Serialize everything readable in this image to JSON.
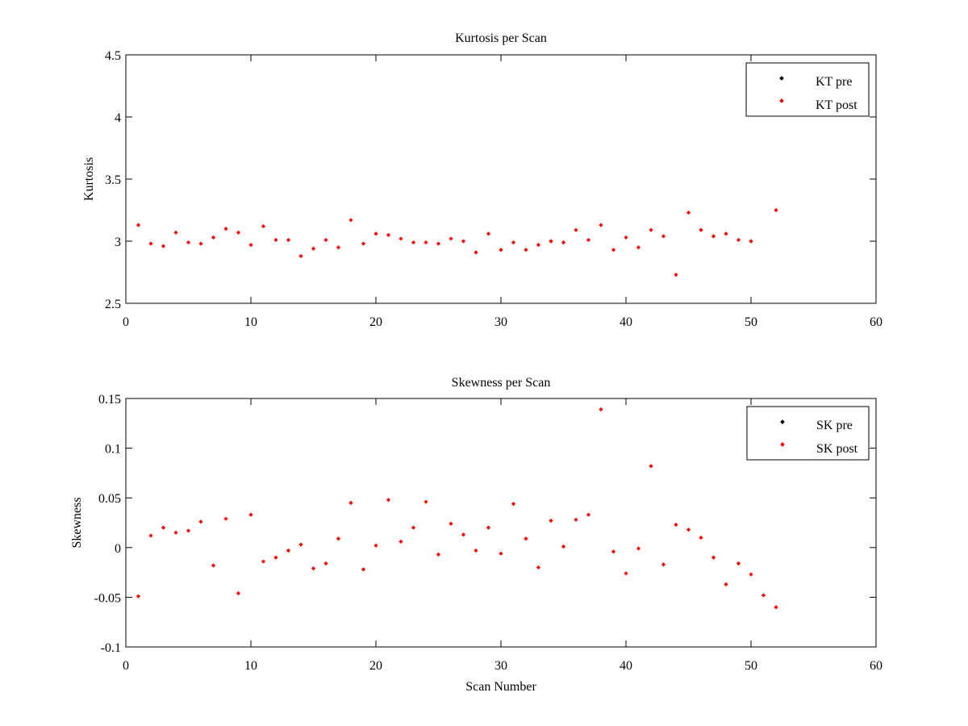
{
  "chart_data": [
    {
      "type": "scatter",
      "title": "Kurtosis per Scan",
      "xlabel": "",
      "ylabel": "Kurtosis",
      "xlim": [
        0,
        60
      ],
      "ylim": [
        2.5,
        4.5
      ],
      "xticks": [
        0,
        10,
        20,
        30,
        40,
        50,
        60
      ],
      "yticks": [
        2.5,
        3,
        3.5,
        4,
        4.5
      ],
      "ytick_labels": [
        "2.5",
        "3",
        "3.5",
        "4",
        "4.5"
      ],
      "grid": false,
      "legend_position": "top-right",
      "series": [
        {
          "name": "KT pre",
          "color": "#000000",
          "x": [],
          "y": []
        },
        {
          "name": "KT post",
          "color": "#ff0000",
          "x": [
            1,
            2,
            3,
            4,
            5,
            6,
            7,
            8,
            9,
            10,
            11,
            12,
            13,
            14,
            15,
            16,
            17,
            18,
            19,
            20,
            21,
            22,
            23,
            24,
            25,
            26,
            27,
            28,
            29,
            30,
            31,
            32,
            33,
            34,
            35,
            36,
            37,
            38,
            39,
            40,
            41,
            42,
            43,
            44,
            45,
            46,
            47,
            48,
            49,
            50,
            52
          ],
          "y": [
            3.13,
            2.98,
            2.96,
            3.07,
            2.99,
            2.98,
            3.03,
            3.1,
            3.07,
            2.97,
            3.12,
            3.01,
            3.01,
            2.88,
            2.94,
            3.01,
            2.95,
            3.17,
            2.98,
            3.06,
            3.05,
            3.02,
            2.99,
            2.99,
            2.98,
            3.02,
            3.0,
            2.91,
            3.06,
            2.93,
            2.99,
            2.93,
            2.97,
            3.0,
            2.99,
            3.09,
            3.01,
            3.13,
            2.93,
            3.03,
            2.95,
            3.09,
            3.04,
            2.73,
            3.23,
            3.09,
            3.04,
            3.06,
            3.01,
            3.0,
            3.25
          ]
        }
      ]
    },
    {
      "type": "scatter",
      "title": "Skewness per Scan",
      "xlabel": "Scan Number",
      "ylabel": "Skewness",
      "xlim": [
        0,
        60
      ],
      "ylim": [
        -0.1,
        0.15
      ],
      "xticks": [
        0,
        10,
        20,
        30,
        40,
        50,
        60
      ],
      "yticks": [
        -0.1,
        -0.05,
        0,
        0.05,
        0.1,
        0.15
      ],
      "ytick_labels": [
        "-0.1",
        "-0.05",
        "0",
        "0.05",
        "0.1",
        "0.15"
      ],
      "grid": false,
      "legend_position": "top-right",
      "series": [
        {
          "name": "SK pre",
          "color": "#000000",
          "x": [],
          "y": []
        },
        {
          "name": "SK post",
          "color": "#ff0000",
          "x": [
            1,
            2,
            3,
            4,
            5,
            6,
            7,
            8,
            9,
            10,
            11,
            12,
            13,
            14,
            15,
            16,
            17,
            18,
            19,
            20,
            21,
            22,
            23,
            24,
            25,
            26,
            27,
            28,
            29,
            30,
            31,
            32,
            33,
            34,
            35,
            36,
            37,
            38,
            39,
            40,
            41,
            42,
            43,
            44,
            45,
            46,
            47,
            48,
            49,
            50,
            51,
            52
          ],
          "y": [
            -0.049,
            0.012,
            0.02,
            0.015,
            0.017,
            0.026,
            -0.018,
            0.029,
            -0.046,
            0.033,
            -0.014,
            -0.01,
            -0.003,
            0.003,
            -0.021,
            -0.016,
            0.009,
            0.045,
            -0.022,
            0.002,
            0.048,
            0.006,
            0.02,
            0.046,
            -0.007,
            0.024,
            0.013,
            -0.003,
            0.02,
            -0.006,
            0.044,
            0.009,
            -0.02,
            0.027,
            0.001,
            0.028,
            0.033,
            0.139,
            -0.004,
            -0.026,
            -0.001,
            0.082,
            -0.017,
            0.023,
            0.018,
            0.01,
            -0.01,
            -0.037,
            -0.016,
            -0.027,
            -0.048,
            -0.06
          ]
        }
      ]
    }
  ]
}
